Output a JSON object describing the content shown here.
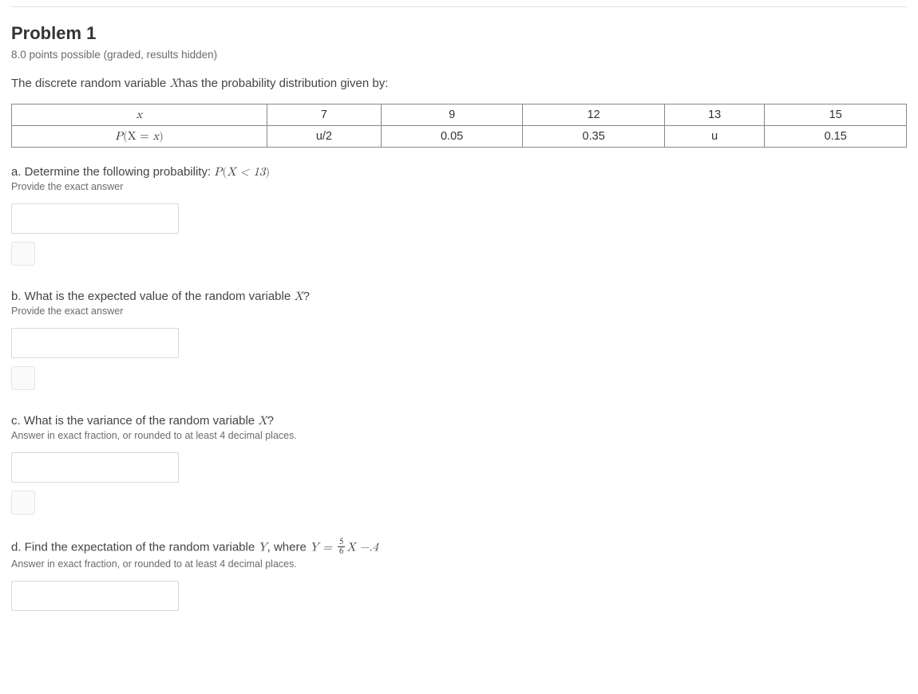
{
  "title": "Problem 1",
  "points_line": "8.0 points possible (graded, results hidden)",
  "intro_pre": "The discrete random variable ",
  "intro_var": "X",
  "intro_post": "has the probability distribution given by:",
  "table": {
    "header_x": "x",
    "header_p_pre": "P",
    "header_p_inner_pre": "(X = ",
    "header_p_inner_var": "x",
    "header_p_inner_post": ")",
    "cols": [
      "7",
      "9",
      "12",
      "13",
      "15"
    ],
    "probs": [
      "u/2",
      "0.05",
      "0.35",
      "u",
      "0.15"
    ],
    "col_widths": [
      "320px",
      "160px",
      "160px",
      "180px",
      "140px",
      "160px"
    ],
    "border_color": "#888888",
    "font_size": 14.5
  },
  "qa": {
    "prefix": "a. Determine the following probability: ",
    "expr_P": "P",
    "expr_open": "(",
    "expr_body": "X < 13",
    "expr_close": ")",
    "hint": "Provide the exact answer"
  },
  "qb": {
    "prefix": "b. What is the expected value of the random variable ",
    "var": "X",
    "suffix": "?",
    "hint": "Provide the exact answer"
  },
  "qc": {
    "prefix": "c. What is the variance of the random variable ",
    "var": "X",
    "suffix": "?",
    "hint": "Answer in exact fraction, or rounded to at least 4 decimal places."
  },
  "qd": {
    "prefix": "d. Find the expectation of the random variable ",
    "varY": "Y",
    "mid": ", where ",
    "eq_lhs": "Y = ",
    "frac_n": "5",
    "frac_d": "6",
    "eq_rhs": "X −.4",
    "hint": "Answer in exact fraction, or rounded to at least 4 decimal places."
  },
  "colors": {
    "text": "#313131",
    "muted": "#6b6b6b",
    "rule": "#e2e2e2",
    "input_border": "#d9d9d9"
  }
}
